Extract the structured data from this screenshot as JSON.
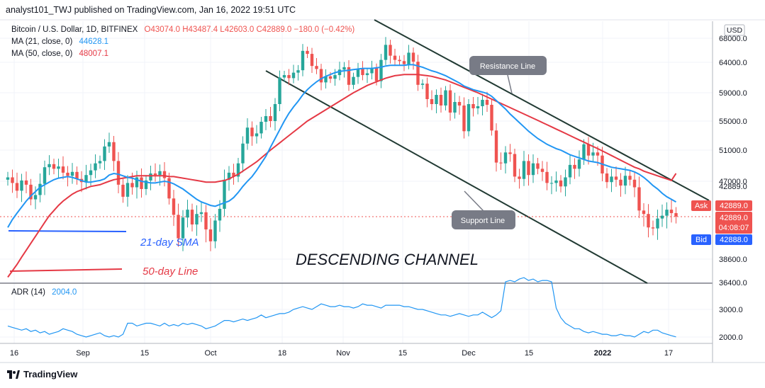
{
  "header": {
    "publisher": "analyst101_TWJ published on TradingView.com, Jan 16, 2022 19:51 UTC"
  },
  "legend": {
    "symbol": "Bitcoin / U.S. Dollar, 1D, BITFINEX",
    "ohlc": "O43074.0  H43487.4  L42603.0  C42889.0  −180.0 (−0.42%)",
    "ma21_label": "MA (21, close, 0)",
    "ma21_value": "44628.1",
    "ma50_label": "MA (50, close, 0)",
    "ma50_value": "48007.1",
    "adr_label": "ADR (14)",
    "adr_value": "2004.0"
  },
  "footer": {
    "brand": "TradingView"
  },
  "colors": {
    "up": "#26a69a",
    "down": "#ef5350",
    "ma21": "#2196f3",
    "ma50": "#e53945",
    "trend": "#213a33",
    "callout": "#787b86",
    "ask": "#ef5350",
    "bid": "#2962ff"
  },
  "chart_data": {
    "type": "candlestick",
    "currency_badge": "USD",
    "price_ticks": [
      "68000.0",
      "64000.0",
      "59000.0",
      "55000.0",
      "51000.0",
      "47000.0",
      "42889.0",
      "38600.0",
      "36400.0"
    ],
    "x_ticks": [
      "16",
      "Sep",
      "15",
      "Oct",
      "18",
      "Nov",
      "15",
      "Dec",
      "15",
      "2022",
      "17"
    ],
    "adr_ticks": [
      "3000.0",
      "2000.0"
    ],
    "ask_label": "Ask",
    "ask_price": "42889.0",
    "last_price": "42889.0",
    "countdown": "04:08:07",
    "bid_label": "Bid",
    "bid_price": "42888.0",
    "annotations": {
      "resistance": "Resistance Line",
      "support": "Support Line",
      "channel": "DESCENDING CHANNEL",
      "sma21": "21-day SMA",
      "line50": "50-day Line"
    },
    "closes": [
      47500,
      46800,
      45900,
      47100,
      46600,
      44900,
      45400,
      46700,
      48800,
      49200,
      48600,
      48900,
      48100,
      47700,
      48200,
      47300,
      46900,
      47800,
      48400,
      49300,
      49600,
      51500,
      52100,
      49600,
      46600,
      45200,
      46800,
      46300,
      47500,
      46100,
      47100,
      48000,
      47800,
      48300,
      47400,
      45000,
      43100,
      40700,
      42800,
      43700,
      42100,
      43200,
      43400,
      41600,
      40400,
      42500,
      43800,
      47200,
      48100,
      47600,
      49300,
      51900,
      54100,
      52900,
      53300,
      54900,
      55700,
      55000,
      57400,
      61500,
      61900,
      61400,
      62300,
      62700,
      65900,
      65400,
      63400,
      62900,
      60700,
      61700,
      61300,
      61900,
      62800,
      63200,
      60300,
      61600,
      62900,
      61900,
      62200,
      63100,
      60900,
      64400,
      66900,
      65100,
      64400,
      64200,
      63700,
      65600,
      64100,
      60300,
      60500,
      58100,
      57400,
      58700,
      57200,
      59400,
      56200,
      57700,
      57200,
      53600,
      57400,
      56800,
      57100,
      58000,
      57300,
      53700,
      49400,
      49300,
      50700,
      50500,
      47600,
      47300,
      49600,
      47800,
      49300,
      48600,
      48200,
      46800,
      46800,
      47100,
      46400,
      47500,
      49100,
      48600,
      49800,
      51800,
      50300,
      50700,
      50300,
      48000,
      46900,
      47600,
      47200,
      46500,
      47700,
      47200,
      46300,
      43600,
      43200,
      41800,
      41700,
      42700,
      43000,
      43700,
      43300,
      42900
    ],
    "ma21": [
      41800,
      42600,
      43300,
      44000,
      44700,
      45300,
      45800,
      46300,
      46600,
      46900,
      47200,
      47400,
      47500,
      47600,
      47500,
      47300,
      47100,
      46900,
      46900,
      47000,
      47100,
      47300,
      47800,
      48000,
      47900,
      47700,
      47500,
      47400,
      47200,
      47000,
      46900,
      46800,
      46800,
      46900,
      47000,
      46900,
      46700,
      46400,
      46100,
      45700,
      45300,
      44900,
      44600,
      44400,
      44200,
      44100,
      44300,
      44500,
      44700,
      45100,
      45700,
      46400,
      47000,
      47600,
      48400,
      49300,
      50200,
      51400,
      52600,
      53800,
      55000,
      56100,
      57000,
      57800,
      58700,
      59500,
      60200,
      60800,
      61300,
      61700,
      62000,
      62300,
      62500,
      62600,
      62700,
      62800,
      62900,
      63000,
      63000,
      63000,
      63100,
      63200,
      63400,
      63500,
      63500,
      63500,
      63500,
      63600,
      63600,
      63400,
      63200,
      62900,
      62600,
      62400,
      62100,
      61800,
      61400,
      61000,
      60600,
      60100,
      59800,
      59500,
      59300,
      59100,
      58900,
      58500,
      57900,
      57300,
      56700,
      56000,
      55400,
      54800,
      54200,
      53600,
      53100,
      52600,
      52200,
      51800,
      51500,
      51200,
      51000,
      50700,
      50400,
      50200,
      50000,
      49800,
      49600,
      49500,
      49400,
      49200,
      49000,
      48800,
      48700,
      48600,
      48500,
      48400,
      48200,
      47900,
      47500,
      47000,
      46500,
      46100,
      45600,
      45200,
      44900,
      44600
    ],
    "ma50": [
      36900,
      37500,
      38100,
      38800,
      39500,
      40200,
      40900,
      41600,
      42300,
      43000,
      43600,
      44200,
      44700,
      45100,
      45500,
      45800,
      46000,
      46200,
      46400,
      46500,
      46600,
      46800,
      47000,
      47200,
      47300,
      47400,
      47500,
      47600,
      47700,
      47700,
      47700,
      47700,
      47700,
      47700,
      47700,
      47600,
      47600,
      47500,
      47400,
      47300,
      47200,
      47100,
      47000,
      46900,
      46900,
      46900,
      47000,
      47100,
      47300,
      47600,
      47900,
      48300,
      48700,
      49100,
      49500,
      50000,
      50500,
      51000,
      51500,
      52000,
      52500,
      53000,
      53500,
      54000,
      54500,
      55000,
      55400,
      55800,
      56200,
      56600,
      57000,
      57400,
      57800,
      58200,
      58600,
      59000,
      59400,
      59800,
      60200,
      60500,
      60800,
      61100,
      61400,
      61600,
      61800,
      61900,
      62000,
      62000,
      62000,
      62000,
      61900,
      61800,
      61700,
      61500,
      61300,
      61100,
      60800,
      60500,
      60200,
      59900,
      59600,
      59300,
      59000,
      58700,
      58400,
      58100,
      57800,
      57500,
      57200,
      56900,
      56600,
      56300,
      56000,
      55700,
      55400,
      55100,
      54800,
      54500,
      54200,
      53900,
      53600,
      53300,
      53000,
      52700,
      52400,
      52100,
      51800,
      51500,
      51200,
      50900,
      50600,
      50300,
      50000,
      49700,
      49400,
      49100,
      48800,
      48600,
      48300,
      48100,
      47900,
      47700,
      47500,
      47300,
      47100,
      48007
    ],
    "adr": [
      2400,
      2350,
      2300,
      2250,
      2300,
      2200,
      2250,
      2150,
      2200,
      2100,
      2150,
      2200,
      2300,
      2250,
      2200,
      2100,
      2050,
      2000,
      2050,
      2100,
      2150,
      2050,
      2000,
      2050,
      2000,
      2100,
      2500,
      2500,
      2400,
      2450,
      2500,
      2500,
      2450,
      2400,
      2500,
      2400,
      2450,
      2400,
      2500,
      2450,
      2500,
      2450,
      2400,
      2300,
      2350,
      2400,
      2500,
      2600,
      2600,
      2550,
      2600,
      2650,
      2600,
      2650,
      2700,
      2800,
      2700,
      2750,
      2800,
      2850,
      2850,
      2900,
      3000,
      3050,
      3100,
      3050,
      3000,
      3100,
      3200,
      3150,
      3100,
      3100,
      3150,
      3100,
      3100,
      3050,
      3100,
      3200,
      3150,
      3150,
      3100,
      3050,
      3150,
      3150,
      3150,
      3150,
      3100,
      3100,
      3050,
      3000,
      3000,
      2950,
      2900,
      2850,
      2800,
      2800,
      2750,
      2800,
      2850,
      2800,
      2750,
      2800,
      2800,
      2900,
      2800,
      2700,
      2800,
      2950,
      4000,
      4050,
      4000,
      4100,
      4150,
      4050,
      4100,
      4000,
      4050,
      4050,
      4000,
      3050,
      2700,
      2500,
      2400,
      2300,
      2300,
      2200,
      2150,
      2200,
      2150,
      2100,
      2100,
      2050,
      2050,
      2100,
      2050,
      2050,
      2000,
      2100,
      2200,
      2150,
      2250,
      2250,
      2150,
      2100,
      2050,
      2004
    ]
  }
}
